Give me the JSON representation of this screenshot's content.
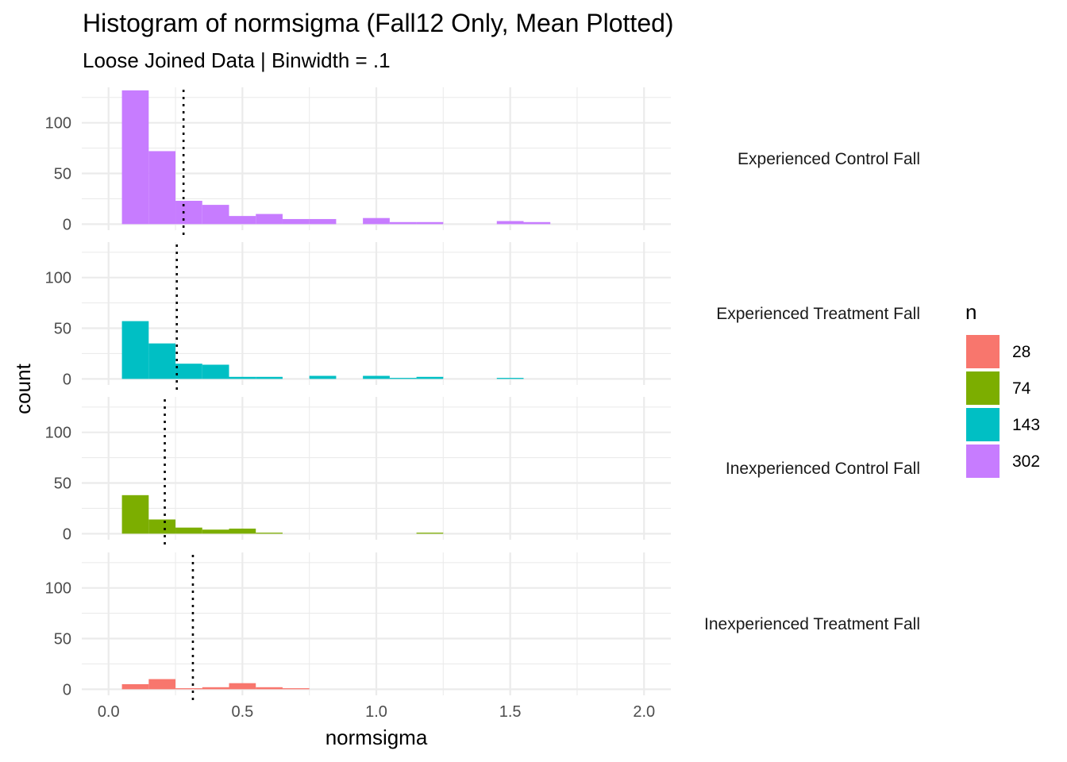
{
  "chart_data": {
    "type": "histogram",
    "title": "Histogram of normsigma (Fall12 Only, Mean Plotted)",
    "subtitle": "Loose Joined Data | Binwidth = .1",
    "xlabel": "normsigma",
    "ylabel": "count",
    "xlim": [
      -0.1,
      2.1
    ],
    "ylim": [
      -6,
      135
    ],
    "x_ticks": [
      "0.0",
      "0.5",
      "1.0",
      "1.5",
      "2.0"
    ],
    "x_tick_values": [
      0,
      0.5,
      1.0,
      1.5,
      2.0
    ],
    "y_ticks": [
      "0",
      "50",
      "100"
    ],
    "y_tick_values": [
      0,
      50,
      100
    ],
    "binwidth": 0.1,
    "grid": true,
    "legend": {
      "title": "n",
      "position": "right",
      "items": [
        {
          "label": "28",
          "color": "#F8766D"
        },
        {
          "label": "74",
          "color": "#7CAE00"
        },
        {
          "label": "143",
          "color": "#00BFC4"
        },
        {
          "label": "302",
          "color": "#C77CFF"
        }
      ]
    },
    "panels": [
      {
        "label": "Experienced Control Fall",
        "color": "#C77CFF",
        "mean": 0.28,
        "bin_centers": [
          0.1,
          0.2,
          0.3,
          0.4,
          0.5,
          0.6,
          0.7,
          0.8,
          1.0,
          1.1,
          1.2,
          1.5,
          1.6
        ],
        "counts": [
          132,
          72,
          23,
          19,
          8,
          10,
          5,
          5,
          6,
          2,
          2,
          3,
          2
        ]
      },
      {
        "label": "Experienced Treatment Fall",
        "color": "#00BFC4",
        "mean": 0.255,
        "bin_centers": [
          0.1,
          0.2,
          0.3,
          0.4,
          0.5,
          0.6,
          0.8,
          1.0,
          1.1,
          1.2,
          1.5
        ],
        "counts": [
          57,
          35,
          15,
          14,
          2,
          2,
          3,
          3,
          1,
          2,
          1
        ]
      },
      {
        "label": "Inexperienced Control Fall",
        "color": "#7CAE00",
        "mean": 0.21,
        "bin_centers": [
          0.1,
          0.2,
          0.3,
          0.4,
          0.5,
          0.6,
          1.2
        ],
        "counts": [
          38,
          14,
          6,
          4,
          5,
          1,
          1
        ]
      },
      {
        "label": "Inexperienced Treatment Fall",
        "color": "#F8766D",
        "mean": 0.315,
        "bin_centers": [
          0.1,
          0.2,
          0.3,
          0.4,
          0.5,
          0.6,
          0.7
        ],
        "counts": [
          5,
          10,
          1,
          2,
          6,
          2,
          1
        ]
      }
    ]
  }
}
